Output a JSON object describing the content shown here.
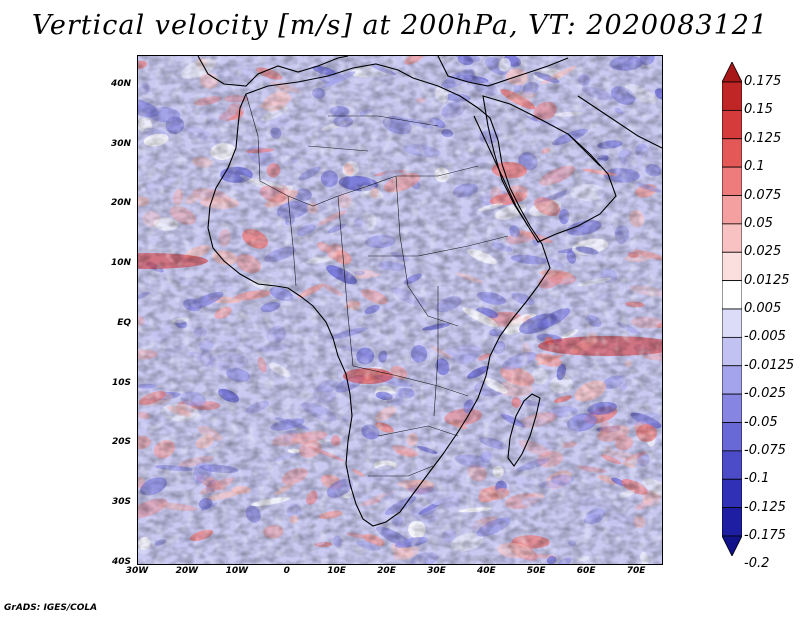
{
  "title": "Vertical velocity [m/s] at 200hPa, VT: 2020083121",
  "credit": "GrADS: IGES/COLA",
  "map": {
    "field": "vertical velocity",
    "level": "200hPa",
    "valid_time": "2020083121",
    "lon_range": [
      -30,
      75
    ],
    "lat_range": [
      -40,
      45
    ],
    "lat_labels": [
      "40N",
      "30N",
      "20N",
      "10N",
      "EQ",
      "10S",
      "20S",
      "30S",
      "40S"
    ],
    "lat_values": [
      40,
      30,
      20,
      10,
      0,
      -10,
      -20,
      -30,
      -40
    ],
    "lon_labels": [
      "30W",
      "20W",
      "10W",
      "0",
      "10E",
      "20E",
      "30E",
      "40E",
      "50E",
      "60E",
      "70E"
    ],
    "lon_values": [
      -30,
      -20,
      -10,
      0,
      10,
      20,
      30,
      40,
      50,
      60,
      70
    ]
  },
  "colorbar": {
    "labels": [
      "0.175",
      "0.15",
      "0.125",
      "0.1",
      "0.075",
      "0.05",
      "0.025",
      "0.0125",
      "0.005",
      "-0.005",
      "-0.0125",
      "-0.025",
      "-0.05",
      "-0.075",
      "-0.1",
      "-0.125",
      "-0.175",
      "-0.2"
    ],
    "colors": [
      "#a81818",
      "#c02626",
      "#d63b3b",
      "#e55858",
      "#ee7c7c",
      "#f4a0a0",
      "#f8c2c2",
      "#fbdede",
      "#ffffff",
      "#dcdcf8",
      "#c2c2f2",
      "#a4a4ec",
      "#8686e2",
      "#6868d6",
      "#4c4cc8",
      "#3030b6",
      "#1e1ea2",
      "#12128a"
    ]
  }
}
